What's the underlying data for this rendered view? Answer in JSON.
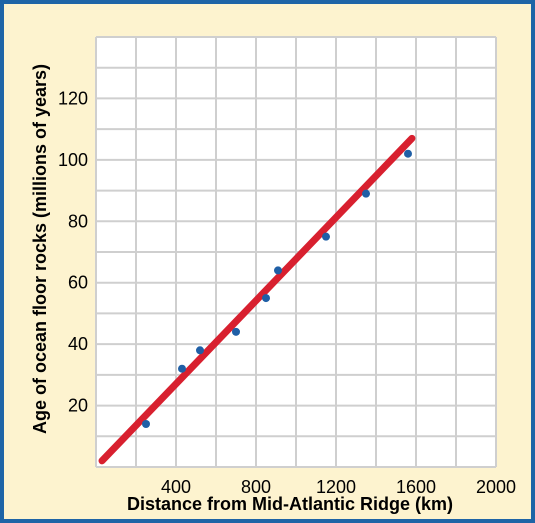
{
  "chart_data": {
    "type": "scatter",
    "xlabel": "Distance from Mid-Atlantic Ridge (km)",
    "ylabel": "Age of ocean floor rocks (millions of years)",
    "xlim": [
      0,
      2000
    ],
    "ylim": [
      0,
      140
    ],
    "x_ticks": [
      400,
      800,
      1200,
      1600,
      2000
    ],
    "y_ticks": [
      20,
      40,
      60,
      80,
      100,
      120
    ],
    "x_tick_labels": [
      "400",
      "800",
      "1200",
      "1600",
      "2000"
    ],
    "y_tick_labels": [
      "20",
      "40",
      "60",
      "80",
      "100",
      "120"
    ],
    "grid": true,
    "points": [
      {
        "x": 250,
        "y": 14
      },
      {
        "x": 430,
        "y": 32
      },
      {
        "x": 520,
        "y": 38
      },
      {
        "x": 700,
        "y": 44
      },
      {
        "x": 850,
        "y": 55
      },
      {
        "x": 910,
        "y": 64
      },
      {
        "x": 1150,
        "y": 75
      },
      {
        "x": 1350,
        "y": 89
      },
      {
        "x": 1560,
        "y": 102
      }
    ],
    "trendline": {
      "x": [
        30,
        1580
      ],
      "y": [
        2,
        107
      ]
    },
    "colors": {
      "background": "#fdf3cf",
      "frame": "#1e64a6",
      "plot_area": "#ffffff",
      "grid": "#cfcfcf",
      "points": "#1f5fa6",
      "trendline": "#d8202f"
    }
  }
}
